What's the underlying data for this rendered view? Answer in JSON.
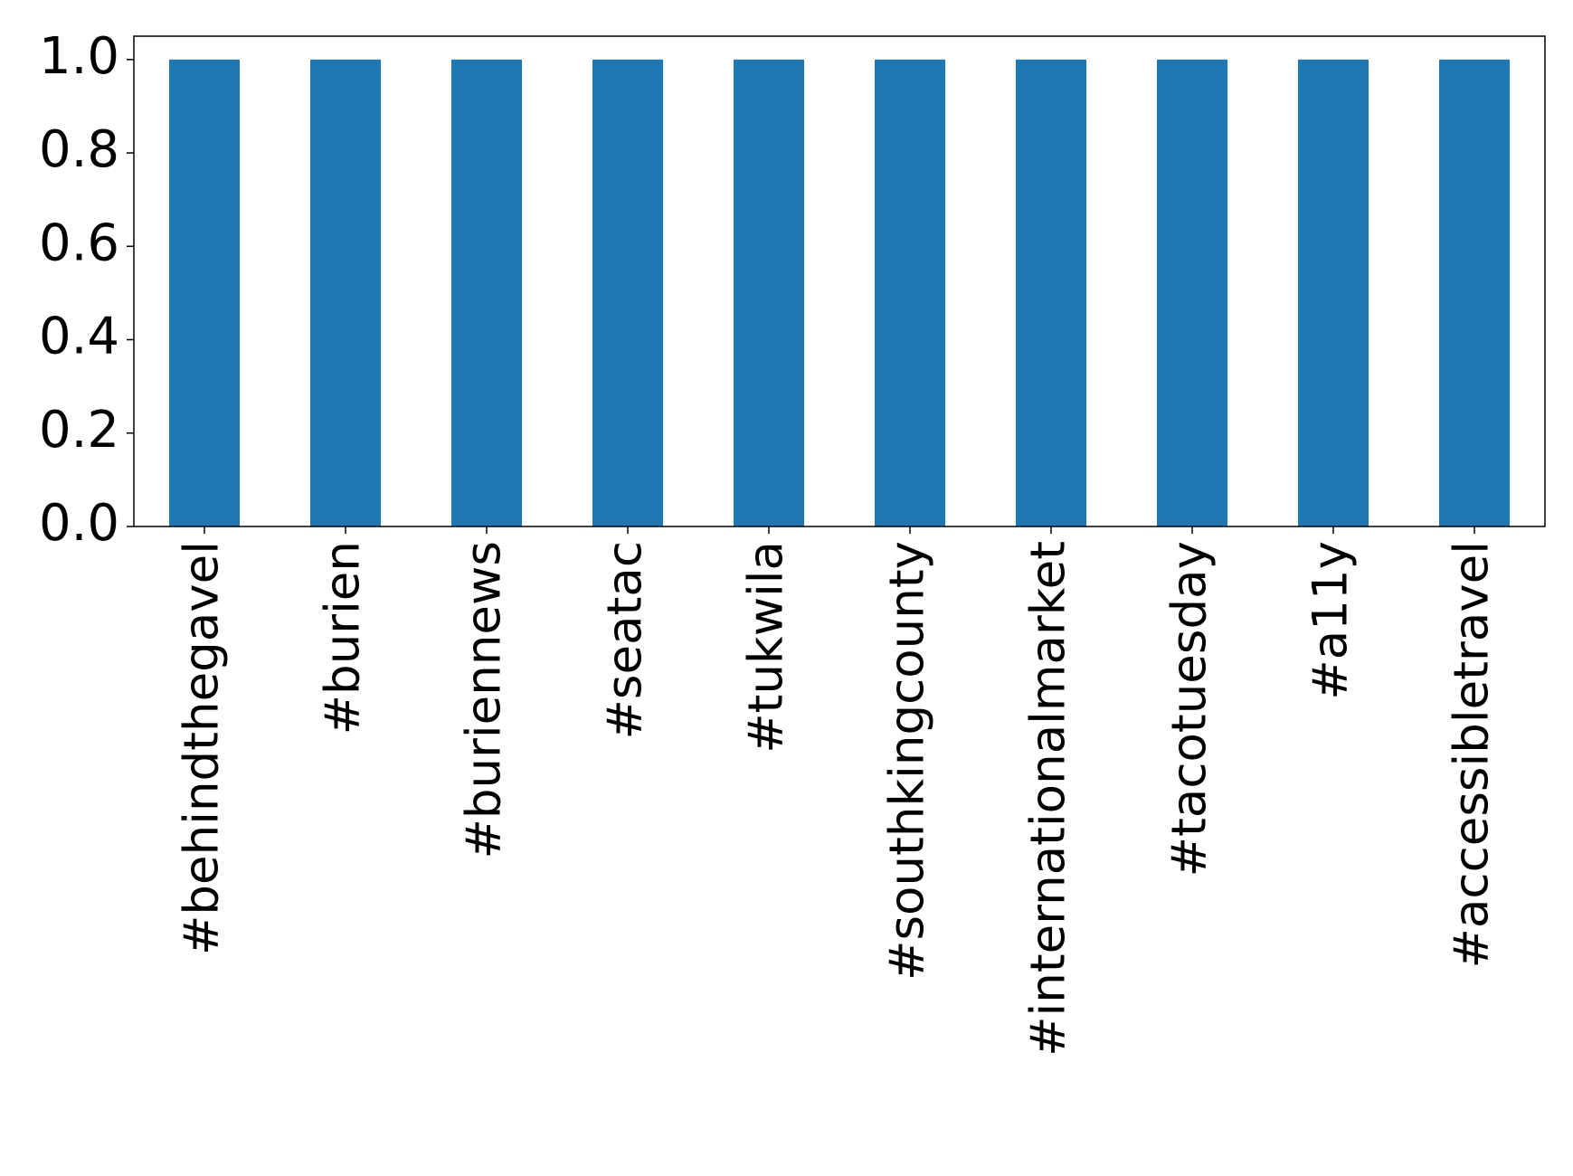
{
  "chart_data": {
    "type": "bar",
    "categories": [
      "#behindthegavel",
      "#burien",
      "#buriennews",
      "#seatac",
      "#tukwila",
      "#southkingcounty",
      "#internationalmarket",
      "#tacotuesday",
      "#a11y",
      "#accessibletravel"
    ],
    "values": [
      1,
      1,
      1,
      1,
      1,
      1,
      1,
      1,
      1,
      1
    ],
    "color": "#1f77b4",
    "ylim": [
      0,
      1.05
    ],
    "yticks": [
      {
        "value": 0,
        "label": "0.0"
      },
      {
        "value": 0.2,
        "label": "0.2"
      },
      {
        "value": 0.4,
        "label": "0.4"
      },
      {
        "value": 0.6,
        "label": "0.6"
      },
      {
        "value": 0.8,
        "label": "0.8"
      },
      {
        "value": 1,
        "label": "1.0"
      }
    ],
    "grid": false
  }
}
